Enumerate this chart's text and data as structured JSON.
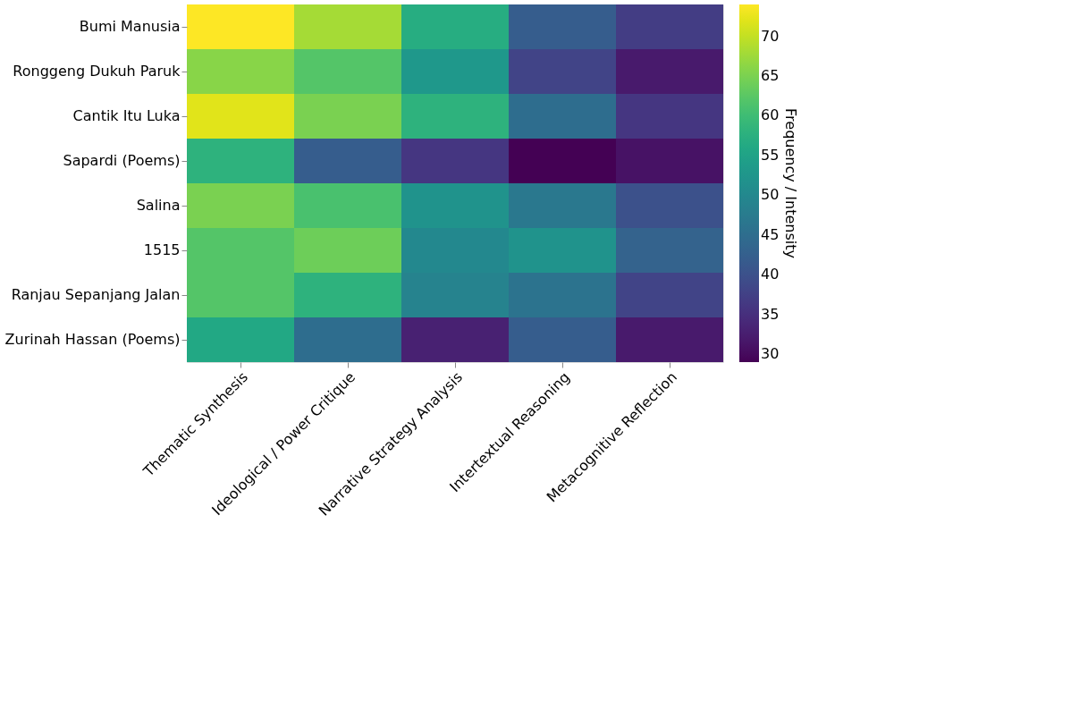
{
  "chart_data": {
    "type": "heatmap",
    "clabel": "Frequency / Intensity",
    "categories": [
      "Thematic Synthesis",
      "Ideological / Power Critique",
      "Narrative Strategy Analysis",
      "Intertextual Reasoning",
      "Metacognitive Reflection"
    ],
    "y_categories": [
      "Bumi Manusia",
      "Ronggeng Dukuh Paruk",
      "Cantik Itu Luka",
      "Sapardi (Poems)",
      "Salina",
      "1515",
      "Ranjau Sepanjang Jalan",
      "Zurinah Hassan (Poems)"
    ],
    "cells": [
      [
        74,
        68,
        57,
        42,
        37
      ],
      [
        66,
        62,
        53,
        38,
        32
      ],
      [
        72,
        65,
        58,
        45,
        36
      ],
      [
        58,
        42,
        36,
        29,
        31
      ],
      [
        65,
        61,
        52,
        47,
        40
      ],
      [
        62,
        64,
        50,
        52,
        43
      ],
      [
        62,
        58,
        49,
        46,
        38
      ],
      [
        56,
        45,
        33,
        42,
        32
      ]
    ],
    "clim": [
      29,
      74
    ],
    "cticks": [
      30,
      35,
      40,
      45,
      50,
      55,
      60,
      65,
      70
    ]
  }
}
